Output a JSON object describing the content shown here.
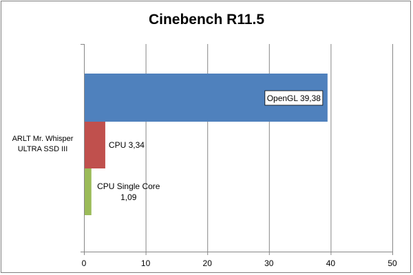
{
  "chart_data": {
    "type": "bar",
    "orientation": "horizontal",
    "title": "Cinebench R11.5",
    "categories": [
      "ARLT Mr. Whisper ULTRA SSD III"
    ],
    "category_lines": [
      "ARLT Mr. Whisper",
      "ULTRA SSD III"
    ],
    "series": [
      {
        "name": "OpenGL",
        "values": [
          39.38
        ],
        "color": "#4f81bd",
        "label_lines": [
          "OpenGL 39,38"
        ],
        "label_boxed": true
      },
      {
        "name": "CPU",
        "values": [
          3.34
        ],
        "color": "#c0504d",
        "label_lines": [
          "CPU 3,34"
        ],
        "label_boxed": false
      },
      {
        "name": "CPU Single Core",
        "values": [
          1.09
        ],
        "color": "#9bbb59",
        "label_lines": [
          "CPU Single Core",
          "1,09"
        ],
        "label_boxed": false
      }
    ],
    "xlim": [
      0,
      50
    ],
    "xticks": [
      "0",
      "10",
      "20",
      "30",
      "40",
      "50"
    ],
    "xtick_values": [
      0,
      10,
      20,
      30,
      40,
      50
    ],
    "grid": true,
    "legend": "none",
    "xlabel": "",
    "ylabel": ""
  }
}
